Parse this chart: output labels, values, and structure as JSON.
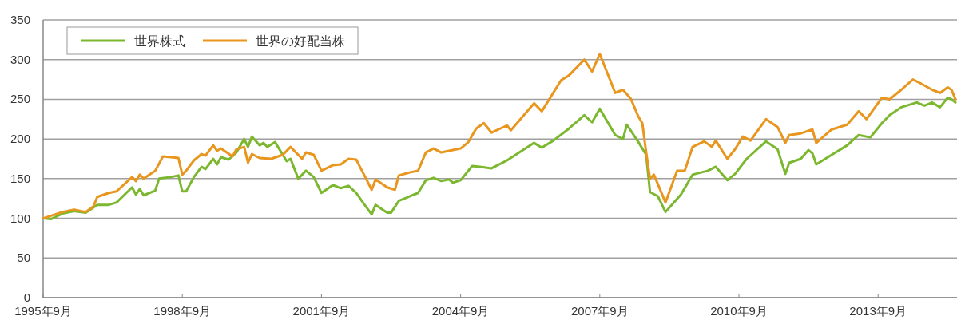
{
  "chart_data": {
    "type": "line",
    "xlim": [
      "1995-09",
      "2015-05"
    ],
    "ylim": [
      0,
      350
    ],
    "xticks": [
      {
        "value": "1995-09",
        "label": "1995年9月"
      },
      {
        "value": "1998-09",
        "label": "1998年9月"
      },
      {
        "value": "2001-09",
        "label": "2001年9月"
      },
      {
        "value": "2004-09",
        "label": "2004年9月"
      },
      {
        "value": "2007-09",
        "label": "2007年9月"
      },
      {
        "value": "2010-09",
        "label": "2010年9月"
      },
      {
        "value": "2013-09",
        "label": "2013年9月"
      }
    ],
    "yticks": [
      0,
      50,
      100,
      150,
      200,
      250,
      300,
      350
    ],
    "grid": "y",
    "legend": "top left",
    "marker": "none",
    "line_style": "solid",
    "series": [
      {
        "name": "世界株式",
        "color": "#7cb82f",
        "x": [
          "1995-09",
          "1995-11",
          "1996-02",
          "1996-05",
          "1996-08",
          "1996-11",
          "1997-02",
          "1997-04",
          "1997-08",
          "1997-09",
          "1997-10",
          "1997-11",
          "1998-02",
          "1998-03",
          "1998-06",
          "1998-08",
          "1998-09",
          "1998-10",
          "1998-12",
          "1999-02",
          "1999-03",
          "1999-05",
          "1999-06",
          "1999-07",
          "1999-09",
          "1999-11",
          "2000-01",
          "2000-02",
          "2000-03",
          "2000-05",
          "2000-06",
          "2000-07",
          "2000-09",
          "2000-11",
          "2000-12",
          "2001-01",
          "2001-03",
          "2001-05",
          "2001-07",
          "2001-09",
          "2001-12",
          "2002-02",
          "2002-04",
          "2002-06",
          "2002-08",
          "2002-10",
          "2002-11",
          "2003-02",
          "2003-03",
          "2003-05",
          "2003-08",
          "2003-10",
          "2003-12",
          "2004-02",
          "2004-04",
          "2004-06",
          "2004-07",
          "2004-09",
          "2004-12",
          "2005-02",
          "2005-05",
          "2005-09",
          "2006-04",
          "2006-06",
          "2006-09",
          "2007-01",
          "2007-05",
          "2007-07",
          "2007-09",
          "2008-01",
          "2008-03",
          "2008-04",
          "2008-07",
          "2008-09",
          "2008-10",
          "2008-12",
          "2009-02",
          "2009-06",
          "2009-09",
          "2010-01",
          "2010-03",
          "2010-06",
          "2010-08",
          "2010-11",
          "2011-04",
          "2011-07",
          "2011-09",
          "2011-10",
          "2012-01",
          "2012-03",
          "2012-04",
          "2012-05",
          "2012-09",
          "2013-01",
          "2013-04",
          "2013-07",
          "2013-10",
          "2013-12",
          "2014-03",
          "2014-07",
          "2014-09",
          "2014-11",
          "2015-01",
          "2015-03",
          "2015-04",
          "2015-05"
        ],
        "values": [
          100,
          99,
          106,
          109,
          107,
          117,
          117,
          120,
          139,
          130,
          137,
          129,
          135,
          150,
          152,
          154,
          134,
          134,
          152,
          165,
          162,
          175,
          168,
          177,
          174,
          183,
          200,
          190,
          203,
          192,
          195,
          190,
          196,
          180,
          172,
          175,
          150,
          160,
          152,
          132,
          142,
          138,
          141,
          132,
          118,
          105,
          117,
          107,
          107,
          122,
          128,
          132,
          148,
          151,
          147,
          149,
          145,
          148,
          166,
          165,
          163,
          173,
          195,
          189,
          198,
          213,
          230,
          221,
          238,
          205,
          200,
          218,
          196,
          180,
          133,
          128,
          108,
          130,
          155,
          160,
          165,
          148,
          156,
          175,
          197,
          187,
          156,
          170,
          175,
          186,
          182,
          168,
          180,
          192,
          205,
          202,
          220,
          230,
          240,
          246,
          242,
          246,
          240,
          252,
          250,
          246
        ]
      },
      {
        "name": "世界の好配当株",
        "color": "#e8961e",
        "x": [
          "1995-09",
          "1996-02",
          "1996-05",
          "1996-08",
          "1996-10",
          "1996-11",
          "1997-02",
          "1997-04",
          "1997-08",
          "1997-09",
          "1997-10",
          "1997-11",
          "1998-02",
          "1998-04",
          "1998-06",
          "1998-08",
          "1998-09",
          "1998-10",
          "1998-12",
          "1999-02",
          "1999-03",
          "1999-05",
          "1999-06",
          "1999-07",
          "1999-10",
          "1999-11",
          "2000-01",
          "2000-02",
          "2000-03",
          "2000-05",
          "2000-08",
          "2000-11",
          "2001-01",
          "2001-04",
          "2001-05",
          "2001-07",
          "2001-09",
          "2001-12",
          "2002-02",
          "2002-04",
          "2002-06",
          "2002-08",
          "2002-10",
          "2002-11",
          "2003-02",
          "2003-04",
          "2003-05",
          "2003-08",
          "2003-10",
          "2003-12",
          "2004-02",
          "2004-04",
          "2004-07",
          "2004-09",
          "2004-11",
          "2005-01",
          "2005-03",
          "2005-05",
          "2005-09",
          "2005-10",
          "2006-04",
          "2006-06",
          "2006-11",
          "2007-01",
          "2007-05",
          "2007-07",
          "2007-09",
          "2008-01",
          "2008-03",
          "2008-05",
          "2008-07",
          "2008-08",
          "2008-09",
          "2008-10",
          "2008-11",
          "2009-02",
          "2009-05",
          "2009-07",
          "2009-09",
          "2009-12",
          "2010-02",
          "2010-03",
          "2010-06",
          "2010-08",
          "2010-10",
          "2010-12",
          "2011-04",
          "2011-07",
          "2011-09",
          "2011-10",
          "2012-01",
          "2012-04",
          "2012-05",
          "2012-09",
          "2013-01",
          "2013-04",
          "2013-06",
          "2013-10",
          "2013-12",
          "2014-03",
          "2014-06",
          "2014-08",
          "2014-11",
          "2015-01",
          "2015-03",
          "2015-04",
          "2015-05"
        ],
        "values": [
          100,
          108,
          111,
          108,
          115,
          127,
          132,
          134,
          152,
          147,
          155,
          150,
          160,
          178,
          177,
          176,
          155,
          160,
          173,
          181,
          179,
          192,
          185,
          188,
          178,
          187,
          190,
          170,
          181,
          176,
          175,
          180,
          190,
          175,
          183,
          180,
          160,
          167,
          168,
          175,
          174,
          155,
          136,
          149,
          139,
          136,
          154,
          158,
          160,
          183,
          188,
          183,
          186,
          188,
          196,
          213,
          220,
          208,
          217,
          211,
          245,
          235,
          274,
          280,
          300,
          285,
          307,
          258,
          262,
          251,
          228,
          220,
          183,
          150,
          155,
          120,
          160,
          160,
          190,
          197,
          190,
          198,
          175,
          187,
          203,
          198,
          225,
          215,
          195,
          205,
          207,
          212,
          195,
          212,
          218,
          235,
          225,
          252,
          250,
          262,
          275,
          270,
          262,
          258,
          265,
          262,
          250
        ]
      }
    ]
  }
}
